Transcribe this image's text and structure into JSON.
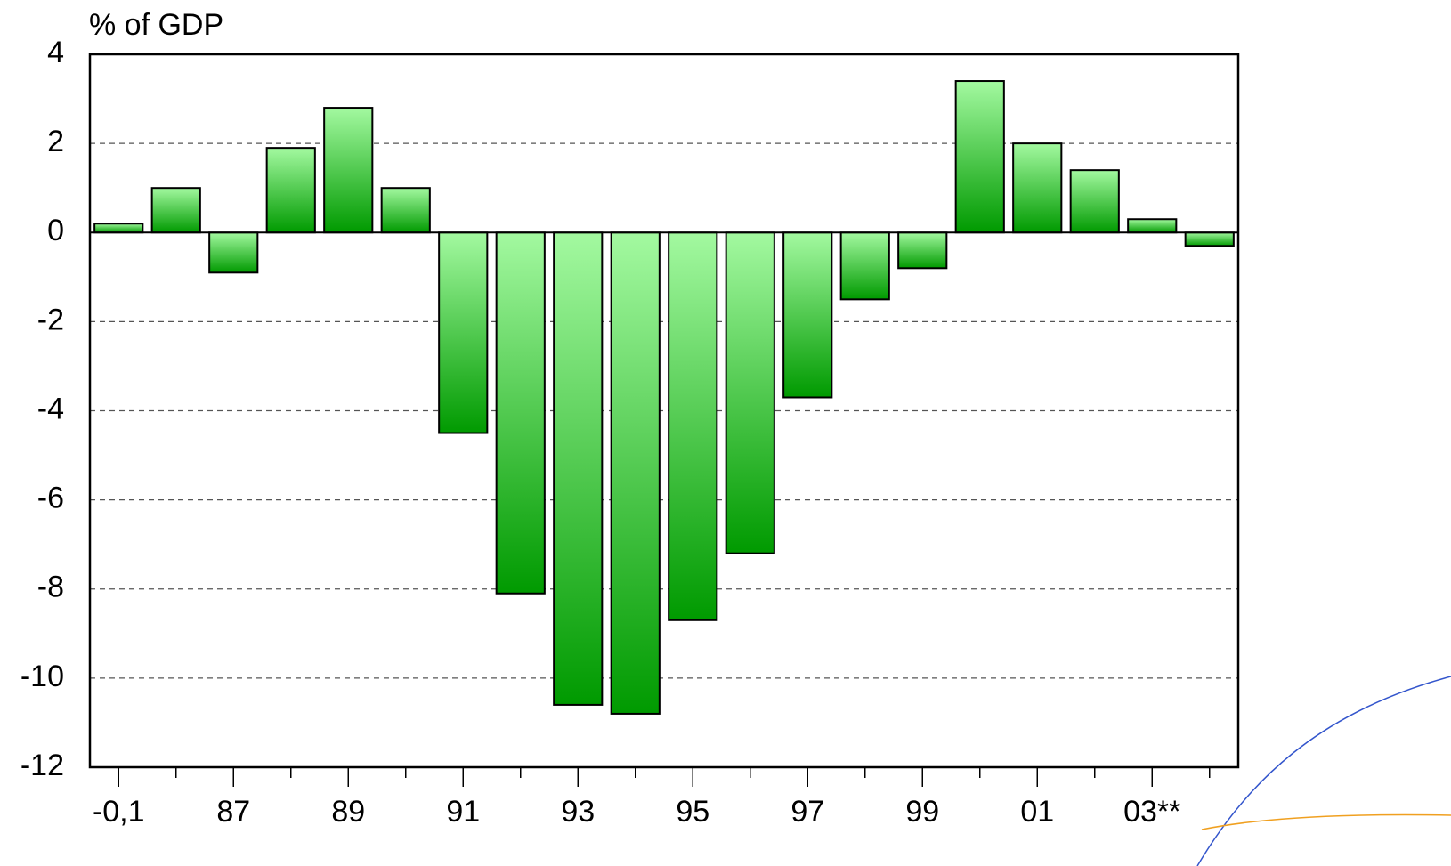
{
  "chart_data": {
    "type": "bar",
    "y_axis_label": "% of GDP",
    "categories": [
      "-0,1",
      null,
      "87",
      null,
      "89",
      null,
      "91",
      null,
      "93",
      null,
      "95",
      null,
      "97",
      null,
      "99",
      null,
      "01",
      null,
      "03**",
      null
    ],
    "values": [
      0.2,
      1.0,
      -0.9,
      1.9,
      2.8,
      1.0,
      -4.5,
      -8.1,
      -10.6,
      -10.8,
      -8.7,
      -7.2,
      -3.7,
      -1.5,
      -0.8,
      3.4,
      2.0,
      1.4,
      0.3,
      -0.3
    ],
    "colors": [
      "#a3f9a0",
      "#009a00"
    ],
    "ylim": [
      -12,
      4
    ],
    "yticks": [
      -12,
      -10,
      -8,
      -6,
      -4,
      -2,
      0,
      2,
      4
    ],
    "grid": true
  }
}
